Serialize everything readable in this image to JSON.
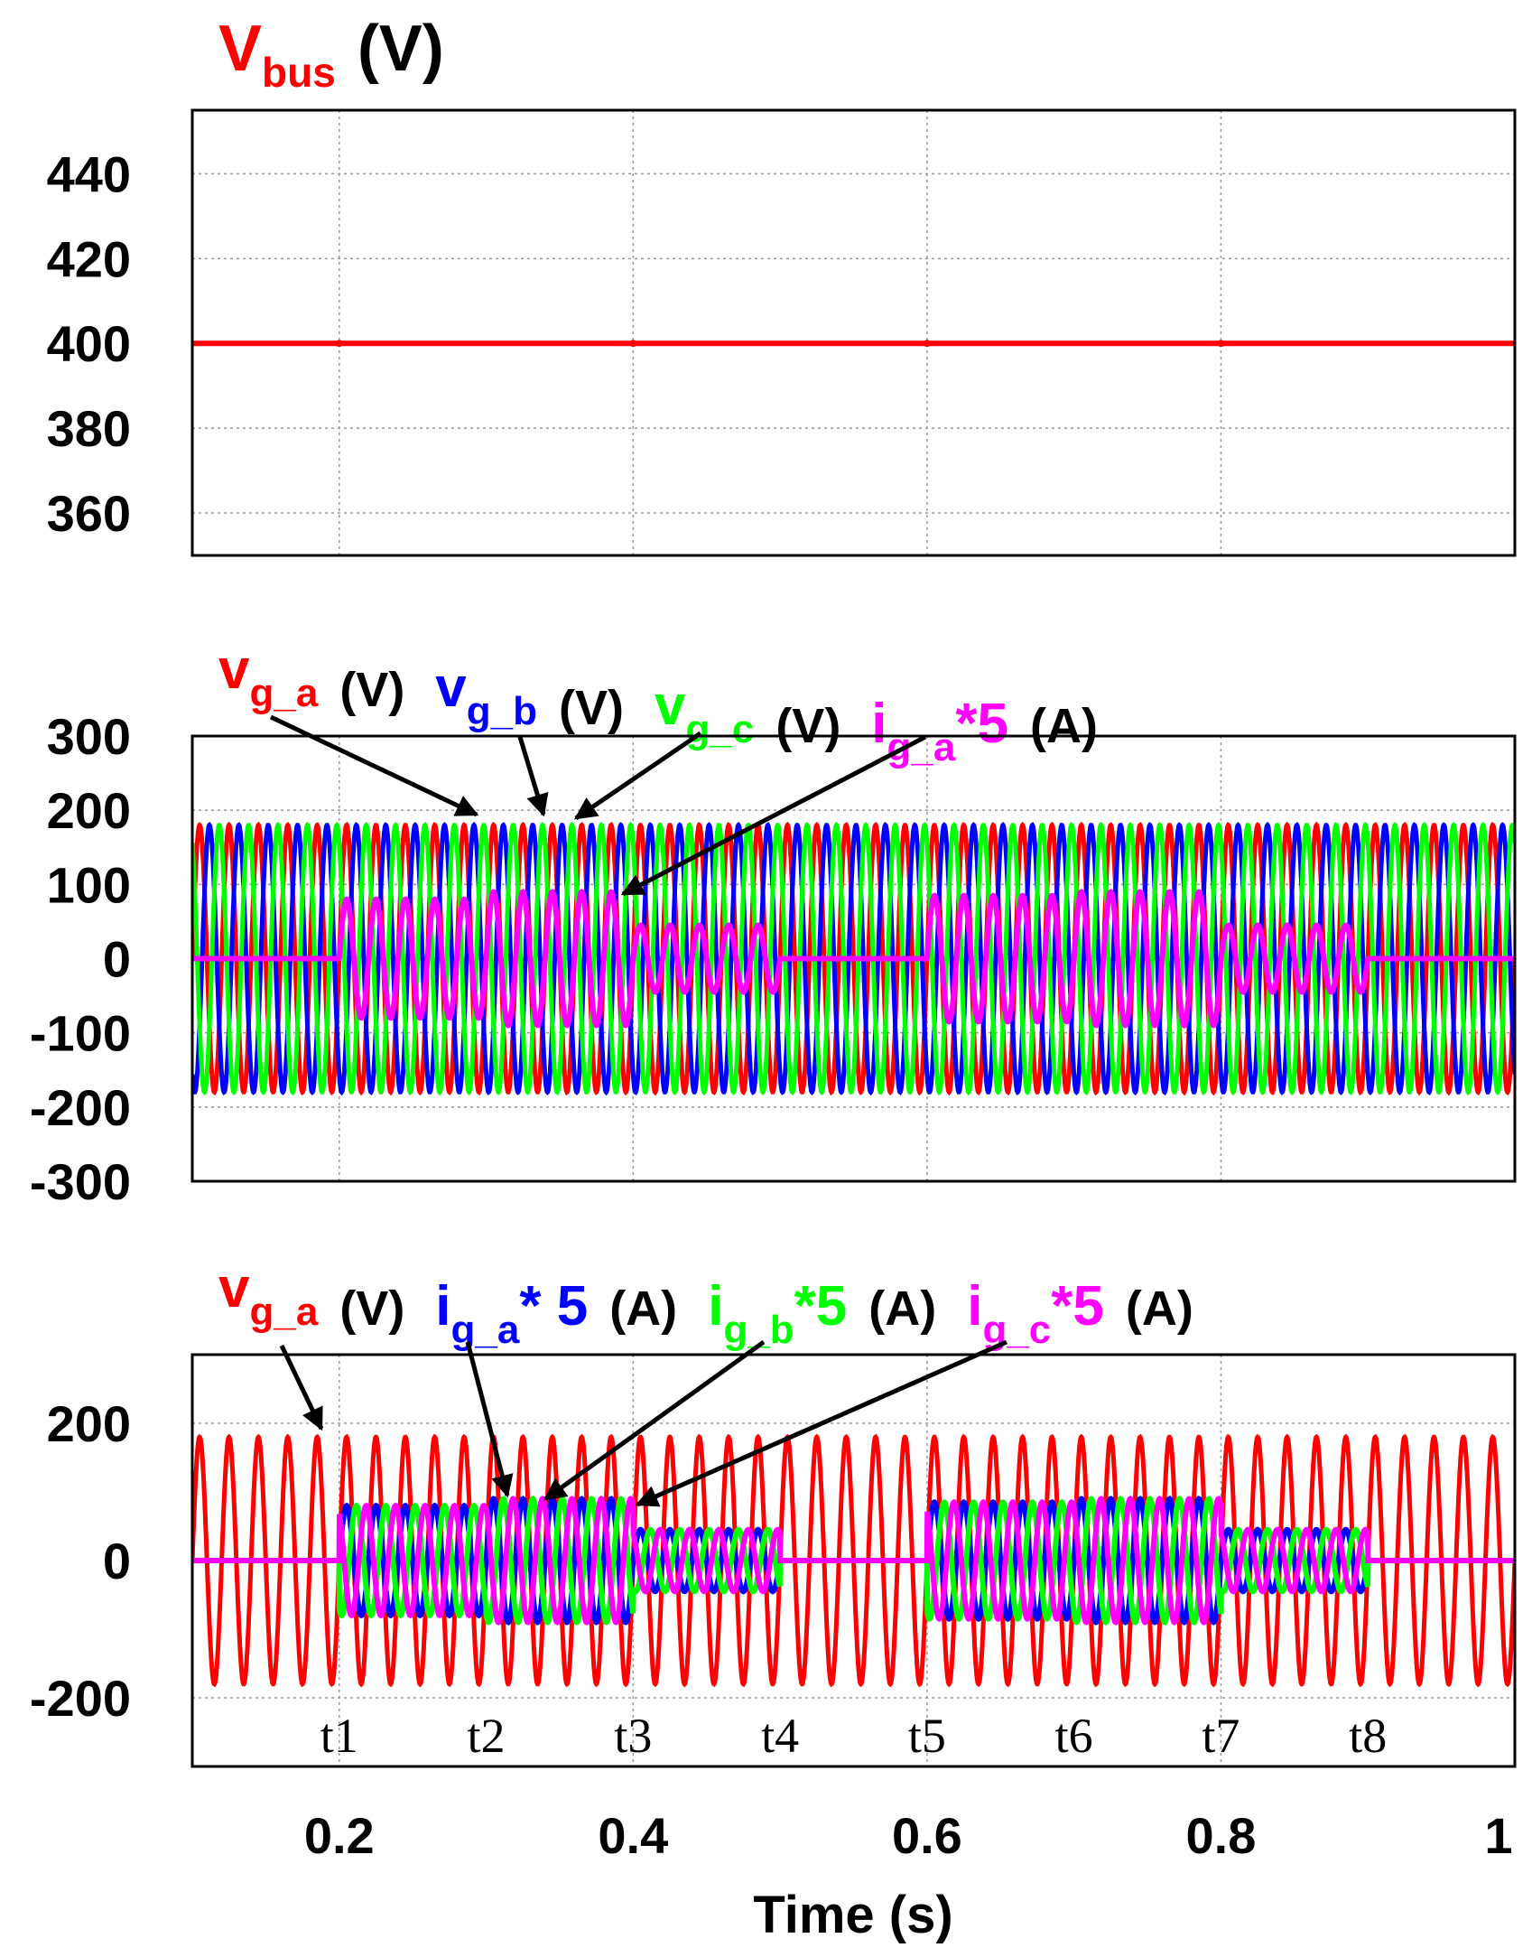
{
  "chart_data": [
    {
      "type": "line",
      "panel": "top",
      "ylabel": {
        "main": "V",
        "sub": "bus",
        "unit": "(V)"
      },
      "ylim": [
        350,
        455
      ],
      "yticks": [
        440,
        420,
        400,
        380,
        360
      ],
      "xlim": [
        0.1,
        1.0
      ],
      "grid": true,
      "series": [
        {
          "name": "Vbus",
          "color": "#ff0000",
          "dc": 400,
          "step_times": [
            0.2,
            0.4,
            0.6,
            0.8
          ]
        }
      ]
    },
    {
      "type": "line",
      "panel": "middle",
      "ylim": [
        -300,
        300
      ],
      "yticks": [
        300,
        200,
        100,
        0,
        -100,
        -200,
        -300
      ],
      "xlim": [
        0.1,
        1.0
      ],
      "grid": true,
      "legend": [
        {
          "main": "v",
          "sub": "g_a",
          "suffix": "",
          "unit": "(V)",
          "color": "#ff0000"
        },
        {
          "main": "v",
          "sub": "g_b",
          "suffix": "",
          "unit": "(V)",
          "color": "#0000ff"
        },
        {
          "main": "v",
          "sub": "g_c",
          "suffix": "",
          "unit": "(V)",
          "color": "#00ff00"
        },
        {
          "main": "i",
          "sub": "g_a",
          "suffix": "*5",
          "unit": "(A)",
          "color": "#ff00ff"
        }
      ],
      "series": [
        {
          "name": "vg_a",
          "color": "#ff0000",
          "amplitude": 180,
          "freq_hz": 50,
          "phase_deg": 0
        },
        {
          "name": "vg_b",
          "color": "#0000ff",
          "amplitude": 180,
          "freq_hz": 50,
          "phase_deg": -120
        },
        {
          "name": "vg_c",
          "color": "#00ff00",
          "amplitude": 180,
          "freq_hz": 50,
          "phase_deg": 120
        },
        {
          "name": "ig_a*5",
          "color": "#ff00ff",
          "freq_hz": 50,
          "phase_deg": 0,
          "amplitude_segments": [
            {
              "t0": 0.1,
              "t1": 0.2,
              "amp": 0
            },
            {
              "t0": 0.2,
              "t1": 0.3,
              "amp": 80
            },
            {
              "t0": 0.3,
              "t1": 0.4,
              "amp": 90
            },
            {
              "t0": 0.4,
              "t1": 0.5,
              "amp": 45
            },
            {
              "t0": 0.5,
              "t1": 0.6,
              "amp": 0
            },
            {
              "t0": 0.6,
              "t1": 0.7,
              "amp": 85
            },
            {
              "t0": 0.7,
              "t1": 0.8,
              "amp": 90
            },
            {
              "t0": 0.8,
              "t1": 0.9,
              "amp": 45
            },
            {
              "t0": 0.9,
              "t1": 1.0,
              "amp": 0
            }
          ]
        }
      ]
    },
    {
      "type": "line",
      "panel": "bottom",
      "ylim": [
        -300,
        300
      ],
      "yticks": [
        200,
        0,
        -200
      ],
      "xlim": [
        0.1,
        1.0
      ],
      "xticks": [
        0.2,
        0.4,
        0.6,
        0.8,
        1.0
      ],
      "xticklabels": [
        "0.2",
        "0.4",
        "0.6",
        "0.8",
        "1"
      ],
      "xlabel": "Time (s)",
      "grid": true,
      "legend": [
        {
          "main": "v",
          "sub": "g_a",
          "suffix": "",
          "unit": "(V)",
          "color": "#ff0000"
        },
        {
          "main": "i",
          "sub": "g_a",
          "suffix": "* 5",
          "unit": "(A)",
          "color": "#0000ff"
        },
        {
          "main": "i",
          "sub": "g_b",
          "suffix": "*5",
          "unit": "(A)",
          "color": "#00ff00"
        },
        {
          "main": "i",
          "sub": "g_c",
          "suffix": "*5",
          "unit": "(A)",
          "color": "#ff00ff"
        }
      ],
      "time_markers": [
        {
          "label": "t1",
          "t": 0.2
        },
        {
          "label": "t2",
          "t": 0.3
        },
        {
          "label": "t3",
          "t": 0.4
        },
        {
          "label": "t4",
          "t": 0.5
        },
        {
          "label": "t5",
          "t": 0.6
        },
        {
          "label": "t6",
          "t": 0.7
        },
        {
          "label": "t7",
          "t": 0.8
        },
        {
          "label": "t8",
          "t": 0.9
        }
      ],
      "series": [
        {
          "name": "vg_a",
          "color": "#ff0000",
          "amplitude": 180,
          "freq_hz": 50,
          "phase_deg": 0
        },
        {
          "name": "ig_a*5",
          "color": "#0000ff",
          "freq_hz": 50,
          "phase_deg": 0,
          "segments_ref": "current"
        },
        {
          "name": "ig_b*5",
          "color": "#00ff00",
          "freq_hz": 50,
          "phase_deg": -120,
          "segments_ref": "current"
        },
        {
          "name": "ig_c*5",
          "color": "#ff00ff",
          "freq_hz": 50,
          "phase_deg": 120,
          "segments_ref": "current"
        }
      ],
      "current_amplitude_segments": [
        {
          "t0": 0.1,
          "t1": 0.2,
          "amp": 0
        },
        {
          "t0": 0.2,
          "t1": 0.3,
          "amp": 80
        },
        {
          "t0": 0.3,
          "t1": 0.4,
          "amp": 90
        },
        {
          "t0": 0.4,
          "t1": 0.5,
          "amp": 45
        },
        {
          "t0": 0.5,
          "t1": 0.6,
          "amp": 0
        },
        {
          "t0": 0.6,
          "t1": 0.7,
          "amp": 85
        },
        {
          "t0": 0.7,
          "t1": 0.8,
          "amp": 90
        },
        {
          "t0": 0.8,
          "t1": 0.9,
          "amp": 45
        },
        {
          "t0": 0.9,
          "t1": 1.0,
          "amp": 0
        }
      ]
    }
  ]
}
